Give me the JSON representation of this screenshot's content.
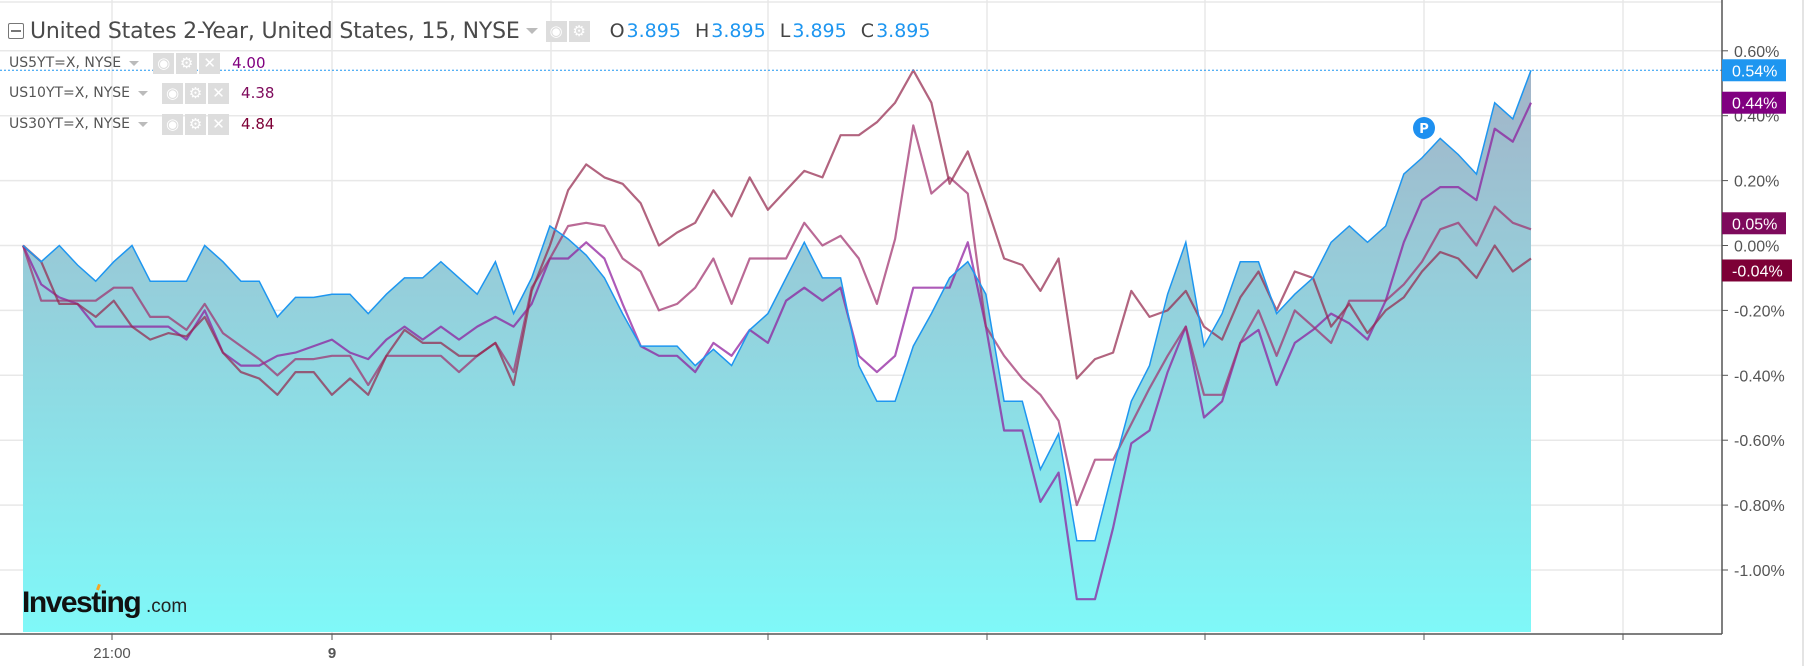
{
  "header": {
    "title": "United States 2-Year, United States, 15, NYSE",
    "icons": [
      "collapse-icon",
      "chevron-down-icon",
      "eye-icon",
      "gear-icon"
    ],
    "ohlc": [
      {
        "key": "O",
        "value": "3.895"
      },
      {
        "key": "H",
        "value": "3.895"
      },
      {
        "key": "L",
        "value": "3.895"
      },
      {
        "key": "C",
        "value": "3.895"
      }
    ]
  },
  "legend": [
    {
      "name": "US5YT=X, NYSE",
      "value": "4.00",
      "color": "#800080"
    },
    {
      "name": "US10YT=X, NYSE",
      "value": "4.38",
      "color": "#7e0a5c"
    },
    {
      "name": "US30YT=X, NYSE",
      "value": "4.84",
      "color": "#7d0036"
    }
  ],
  "logo": {
    "text_main": "Investing",
    "text_suffix": ".com"
  },
  "marker": {
    "label": "P",
    "color": "#1e90f0"
  },
  "chart_data": {
    "type": "area",
    "ylim": [
      -1.18,
      0.72
    ],
    "y_ticks": [
      "0.60%",
      "0.40%",
      "0.20%",
      "0.00%",
      "-0.20%",
      "-0.40%",
      "-0.60%",
      "-0.80%",
      "-1.00%"
    ],
    "y_tick_values": [
      0.6,
      0.4,
      0.2,
      0,
      -0.2,
      -0.4,
      -0.6,
      -0.8,
      -1.0
    ],
    "x_tick_labels": [
      "21:00",
      "9",
      "",
      "",
      "",
      "",
      "",
      ""
    ],
    "grid": true,
    "colors": {
      "main_line": "#1e96f0",
      "area_top": "#a3b4c8",
      "area_bottom": "#7ff8f8",
      "grid": "#e8e8e8"
    },
    "series": [
      {
        "name": "United States 2-Year",
        "style": "area",
        "color": "#1e96f0",
        "last_label": "0.54%",
        "values": [
          0,
          -0.05,
          0,
          -0.06,
          -0.11,
          -0.05,
          0,
          -0.11,
          -0.11,
          -0.11,
          0,
          -0.05,
          -0.11,
          -0.11,
          -0.22,
          -0.16,
          -0.16,
          -0.15,
          -0.15,
          -0.21,
          -0.15,
          -0.1,
          -0.1,
          -0.05,
          -0.1,
          -0.15,
          -0.05,
          -0.21,
          -0.1,
          0.06,
          0.02,
          -0.03,
          -0.1,
          -0.21,
          -0.31,
          -0.31,
          -0.31,
          -0.37,
          -0.32,
          -0.37,
          -0.26,
          -0.21,
          -0.1,
          0.01,
          -0.1,
          -0.1,
          -0.37,
          -0.48,
          -0.48,
          -0.31,
          -0.21,
          -0.1,
          -0.05,
          -0.15,
          -0.48,
          -0.48,
          -0.69,
          -0.58,
          -0.91,
          -0.91,
          -0.69,
          -0.48,
          -0.37,
          -0.15,
          0.01,
          -0.31,
          -0.21,
          -0.05,
          -0.05,
          -0.21,
          -0.15,
          -0.1,
          0.01,
          0.06,
          0.01,
          0.06,
          0.22,
          0.27,
          0.33,
          0.28,
          0.22,
          0.44,
          0.39,
          0.54
        ]
      },
      {
        "name": "US5YT=X, NYSE",
        "style": "line",
        "color": "#8e1a9c",
        "label_color": "#800080",
        "last_label": "0.44%",
        "values": [
          0,
          -0.12,
          -0.16,
          -0.18,
          -0.25,
          -0.25,
          -0.25,
          -0.25,
          -0.25,
          -0.29,
          -0.2,
          -0.33,
          -0.37,
          -0.37,
          -0.34,
          -0.33,
          -0.31,
          -0.29,
          -0.33,
          -0.35,
          -0.29,
          -0.25,
          -0.29,
          -0.25,
          -0.29,
          -0.25,
          -0.22,
          -0.25,
          -0.18,
          -0.04,
          -0.04,
          0.01,
          -0.04,
          -0.18,
          -0.31,
          -0.34,
          -0.34,
          -0.39,
          -0.3,
          -0.34,
          -0.26,
          -0.3,
          -0.17,
          -0.13,
          -0.17,
          -0.13,
          -0.34,
          -0.39,
          -0.34,
          -0.13,
          -0.13,
          -0.13,
          0.01,
          -0.25,
          -0.57,
          -0.57,
          -0.79,
          -0.7,
          -1.09,
          -1.09,
          -0.87,
          -0.61,
          -0.57,
          -0.39,
          -0.25,
          -0.53,
          -0.48,
          -0.3,
          -0.26,
          -0.43,
          -0.3,
          -0.26,
          -0.21,
          -0.24,
          -0.29,
          -0.17,
          0.01,
          0.14,
          0.18,
          0.18,
          0.14,
          0.36,
          0.32,
          0.44
        ]
      },
      {
        "name": "US10YT=X, NYSE",
        "style": "line",
        "color": "#a0306e",
        "label_color": "#7e0a5c",
        "last_label": "0.05%",
        "values": [
          0,
          -0.17,
          -0.17,
          -0.17,
          -0.17,
          -0.13,
          -0.13,
          -0.22,
          -0.22,
          -0.26,
          -0.18,
          -0.27,
          -0.31,
          -0.35,
          -0.4,
          -0.35,
          -0.35,
          -0.34,
          -0.34,
          -0.43,
          -0.34,
          -0.34,
          -0.34,
          -0.34,
          -0.39,
          -0.34,
          -0.3,
          -0.39,
          -0.13,
          -0.04,
          0.06,
          0.07,
          0.06,
          -0.04,
          -0.08,
          -0.2,
          -0.18,
          -0.13,
          -0.04,
          -0.18,
          -0.04,
          -0.04,
          -0.04,
          0.07,
          0.0,
          0.03,
          -0.04,
          -0.18,
          0.02,
          0.37,
          0.16,
          0.21,
          0.16,
          -0.25,
          -0.34,
          -0.41,
          -0.46,
          -0.54,
          -0.8,
          -0.66,
          -0.66,
          -0.55,
          -0.44,
          -0.34,
          -0.25,
          -0.46,
          -0.46,
          -0.3,
          -0.2,
          -0.34,
          -0.2,
          -0.25,
          -0.3,
          -0.17,
          -0.17,
          -0.17,
          -0.12,
          -0.05,
          0.05,
          0.07,
          0.0,
          0.12,
          0.07,
          0.05
        ]
      },
      {
        "name": "US30YT=X, NYSE",
        "style": "line",
        "color": "#94284e",
        "label_color": "#7d0036",
        "last_label": "-0.04%",
        "values": [
          0,
          -0.05,
          -0.18,
          -0.18,
          -0.22,
          -0.17,
          -0.25,
          -0.29,
          -0.27,
          -0.28,
          -0.22,
          -0.33,
          -0.39,
          -0.41,
          -0.46,
          -0.39,
          -0.39,
          -0.46,
          -0.41,
          -0.46,
          -0.34,
          -0.26,
          -0.3,
          -0.3,
          -0.34,
          -0.34,
          -0.3,
          -0.43,
          -0.14,
          0.0,
          0.17,
          0.25,
          0.21,
          0.19,
          0.13,
          0.0,
          0.04,
          0.07,
          0.17,
          0.09,
          0.21,
          0.11,
          0.17,
          0.23,
          0.21,
          0.34,
          0.34,
          0.38,
          0.44,
          0.54,
          0.44,
          0.19,
          0.29,
          0.13,
          -0.04,
          -0.06,
          -0.14,
          -0.04,
          -0.41,
          -0.35,
          -0.33,
          -0.14,
          -0.22,
          -0.2,
          -0.14,
          -0.25,
          -0.29,
          -0.16,
          -0.08,
          -0.2,
          -0.08,
          -0.1,
          -0.25,
          -0.18,
          -0.27,
          -0.2,
          -0.16,
          -0.08,
          -0.02,
          -0.04,
          -0.1,
          0.0,
          -0.08,
          -0.04
        ]
      }
    ]
  }
}
